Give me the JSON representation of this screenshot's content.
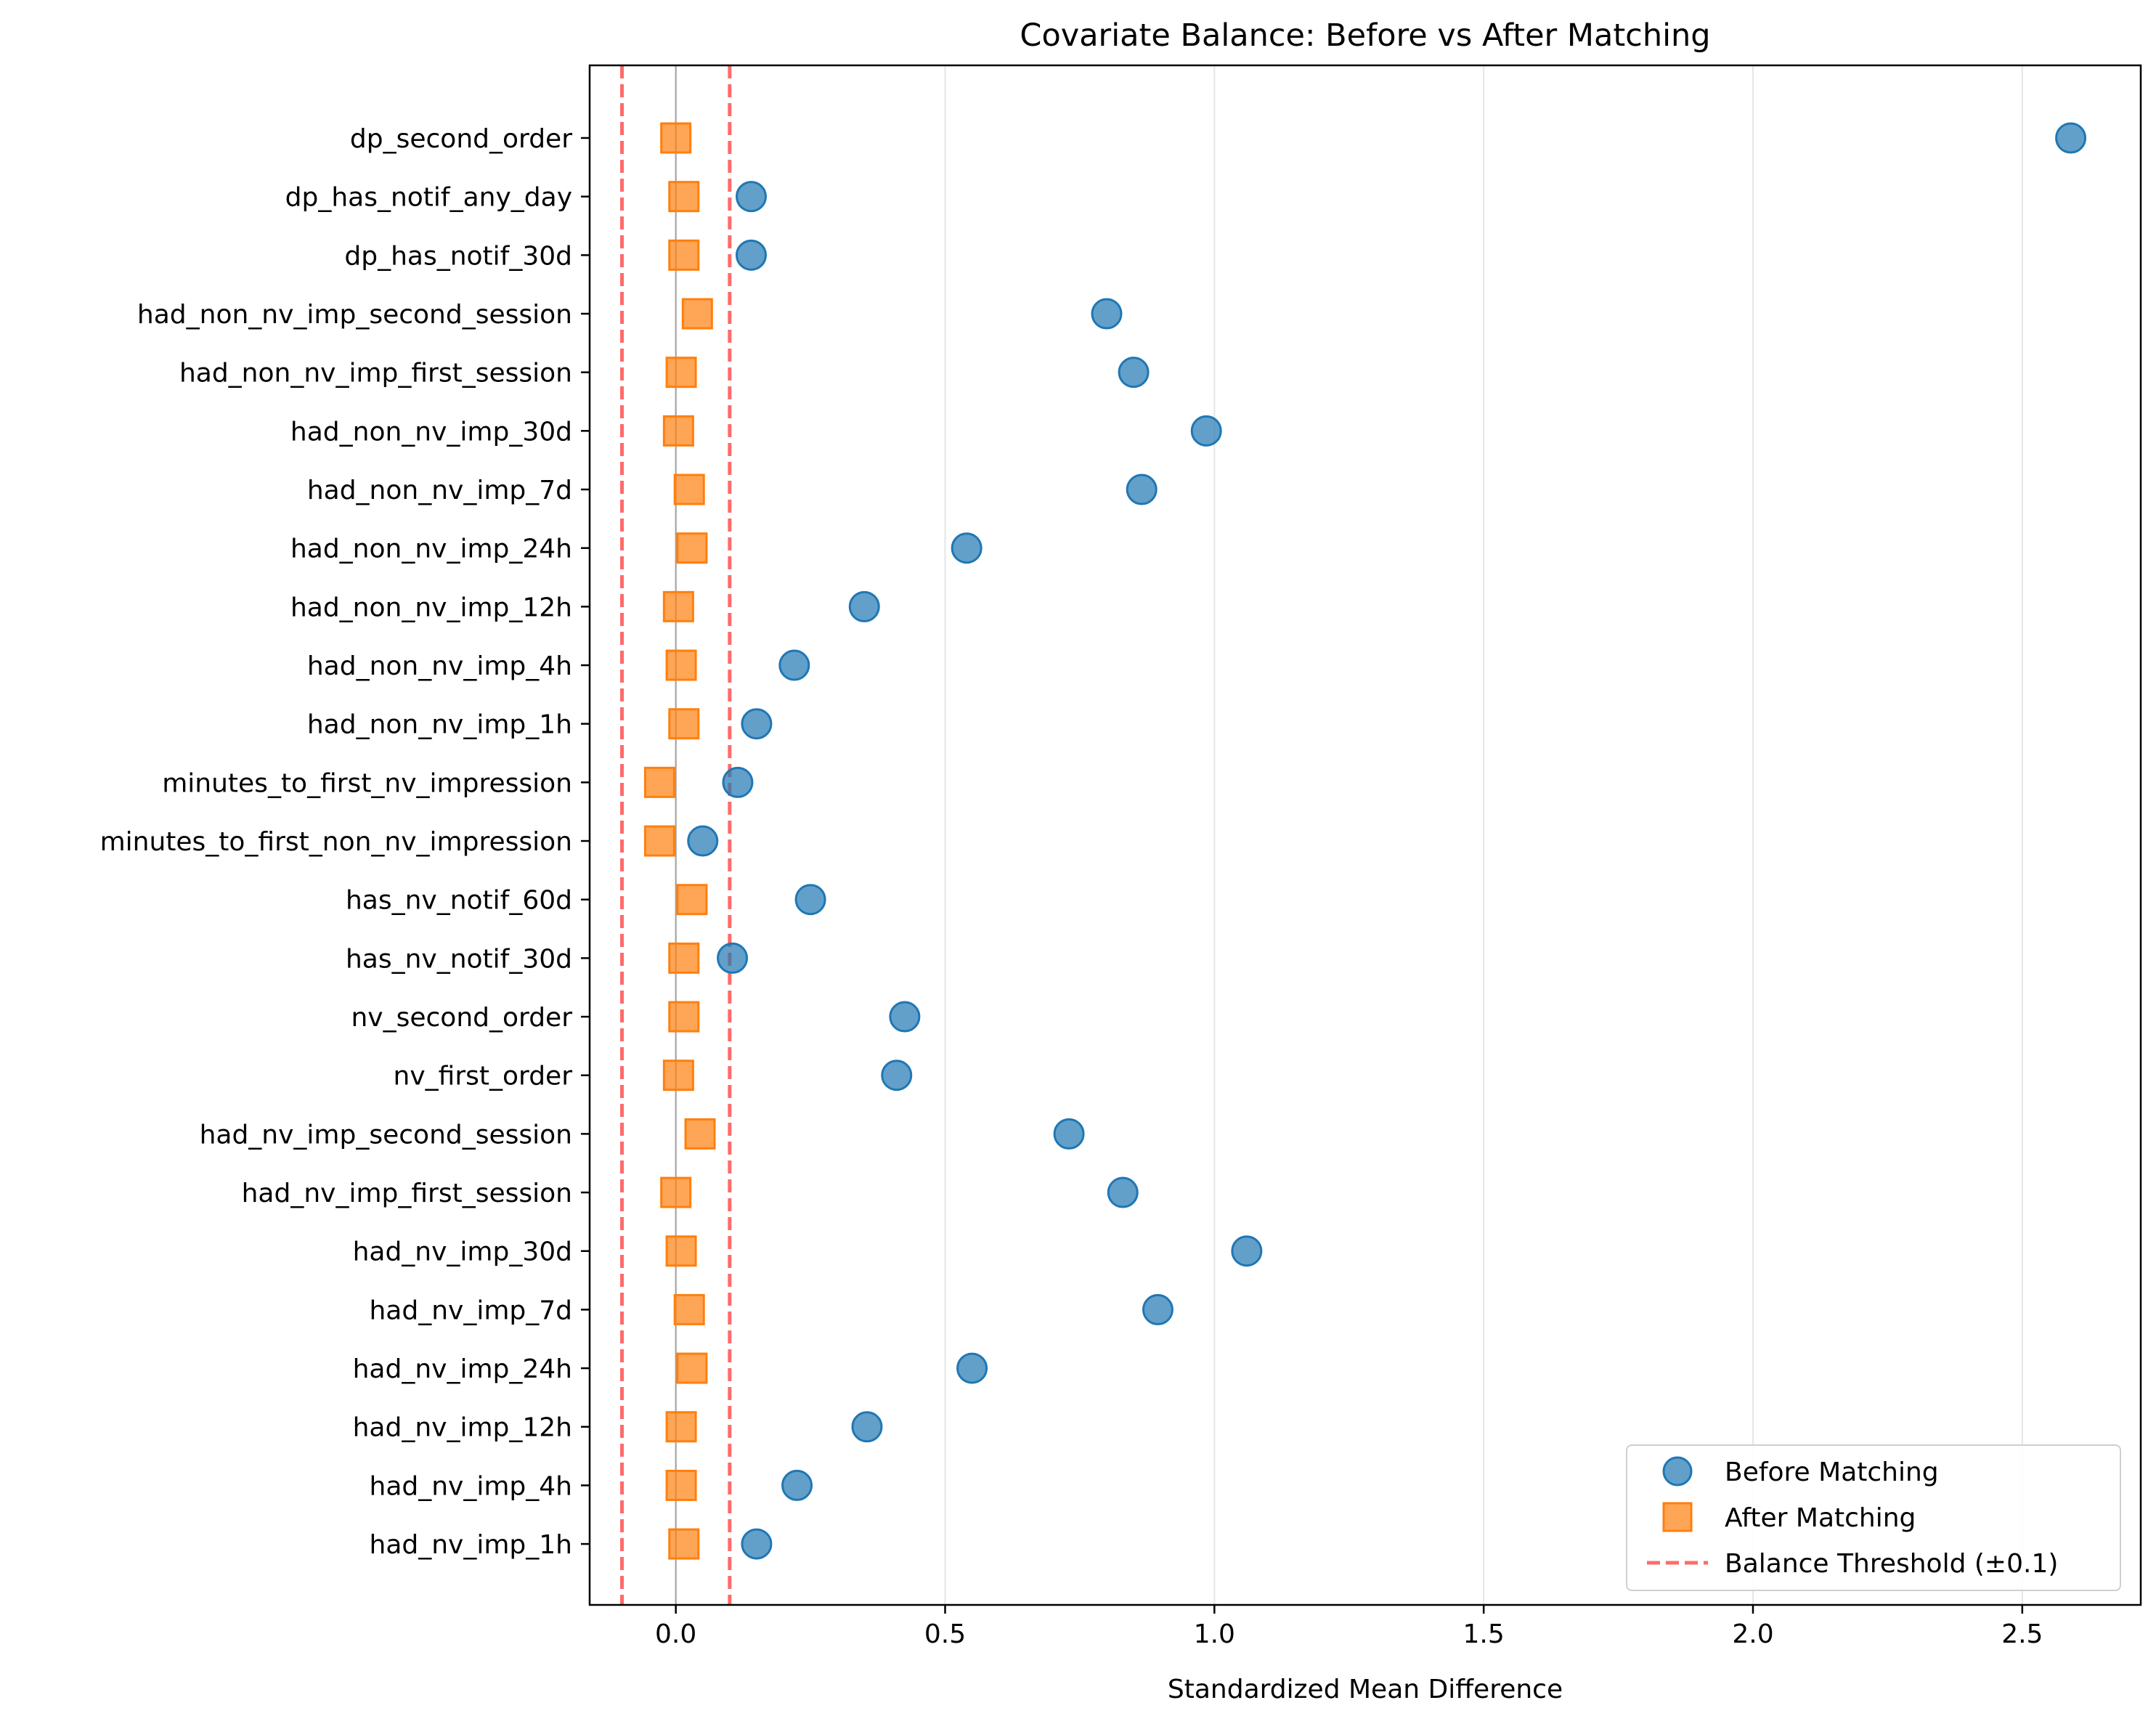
{
  "chart_data": {
    "type": "scatter",
    "title": "Covariate Balance: Before vs After Matching",
    "xlabel": "Standardized Mean Difference",
    "ylabel": "",
    "xlim": [
      -0.16,
      2.72
    ],
    "xticks": [
      0.0,
      0.5,
      1.0,
      1.5,
      2.0,
      2.5
    ],
    "xtick_labels": [
      "0.0",
      "0.5",
      "1.0",
      "1.5",
      "2.0",
      "2.5"
    ],
    "grid": "x",
    "legend": "bottom-right",
    "threshold": {
      "label": "Balance Threshold (±0.1)",
      "values": [
        -0.1,
        0.1
      ],
      "color": "#ff6b6b"
    },
    "zero_line": 0.0,
    "categories": [
      "dp_second_order",
      "dp_has_notif_any_day",
      "dp_has_notif_30d",
      "had_non_nv_imp_second_session",
      "had_non_nv_imp_first_session",
      "had_non_nv_imp_30d",
      "had_non_nv_imp_7d",
      "had_non_nv_imp_24h",
      "had_non_nv_imp_12h",
      "had_non_nv_imp_4h",
      "had_non_nv_imp_1h",
      "minutes_to_first_nv_impression",
      "minutes_to_first_non_nv_impression",
      "has_nv_notif_60d",
      "has_nv_notif_30d",
      "nv_second_order",
      "nv_first_order",
      "had_nv_imp_second_session",
      "had_nv_imp_first_session",
      "had_nv_imp_30d",
      "had_nv_imp_7d",
      "had_nv_imp_24h",
      "had_nv_imp_12h",
      "had_nv_imp_4h",
      "had_nv_imp_1h"
    ],
    "series": [
      {
        "name": "Before Matching",
        "marker": "circle",
        "color": "#1f77b4",
        "values": [
          2.59,
          0.14,
          0.14,
          0.8,
          0.85,
          0.985,
          0.865,
          0.54,
          0.35,
          0.22,
          0.15,
          0.115,
          0.05,
          0.25,
          0.105,
          0.425,
          0.41,
          0.73,
          0.83,
          1.06,
          0.895,
          0.55,
          0.355,
          0.225,
          0.15
        ]
      },
      {
        "name": "After Matching",
        "marker": "square",
        "color": "#ff7f0e",
        "values": [
          0.0,
          0.015,
          0.015,
          0.04,
          0.01,
          0.005,
          0.025,
          0.03,
          0.005,
          0.01,
          0.015,
          -0.03,
          -0.03,
          0.03,
          0.015,
          0.015,
          0.005,
          0.045,
          0.0,
          0.01,
          0.025,
          0.03,
          0.01,
          0.01,
          0.015
        ]
      }
    ]
  }
}
